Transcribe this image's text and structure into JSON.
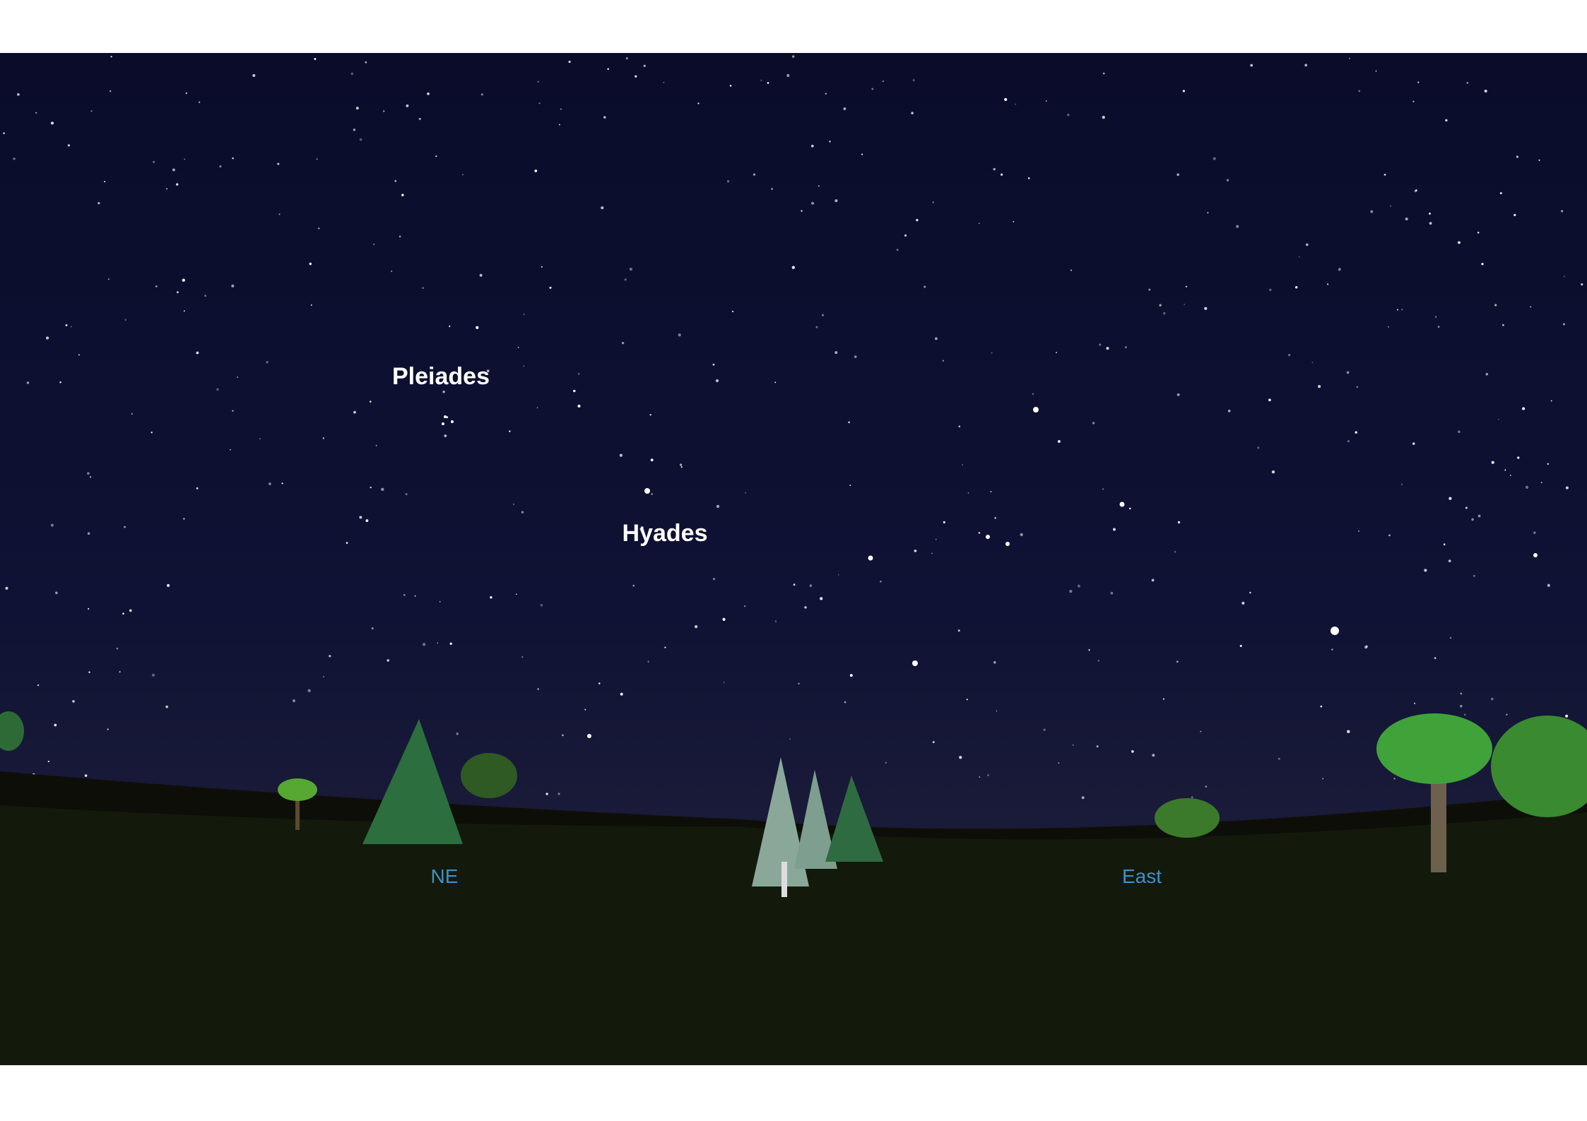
{
  "sky_labels": [
    "Pleiades",
    "Hyades"
  ],
  "directions": [
    "NE",
    "East"
  ]
}
